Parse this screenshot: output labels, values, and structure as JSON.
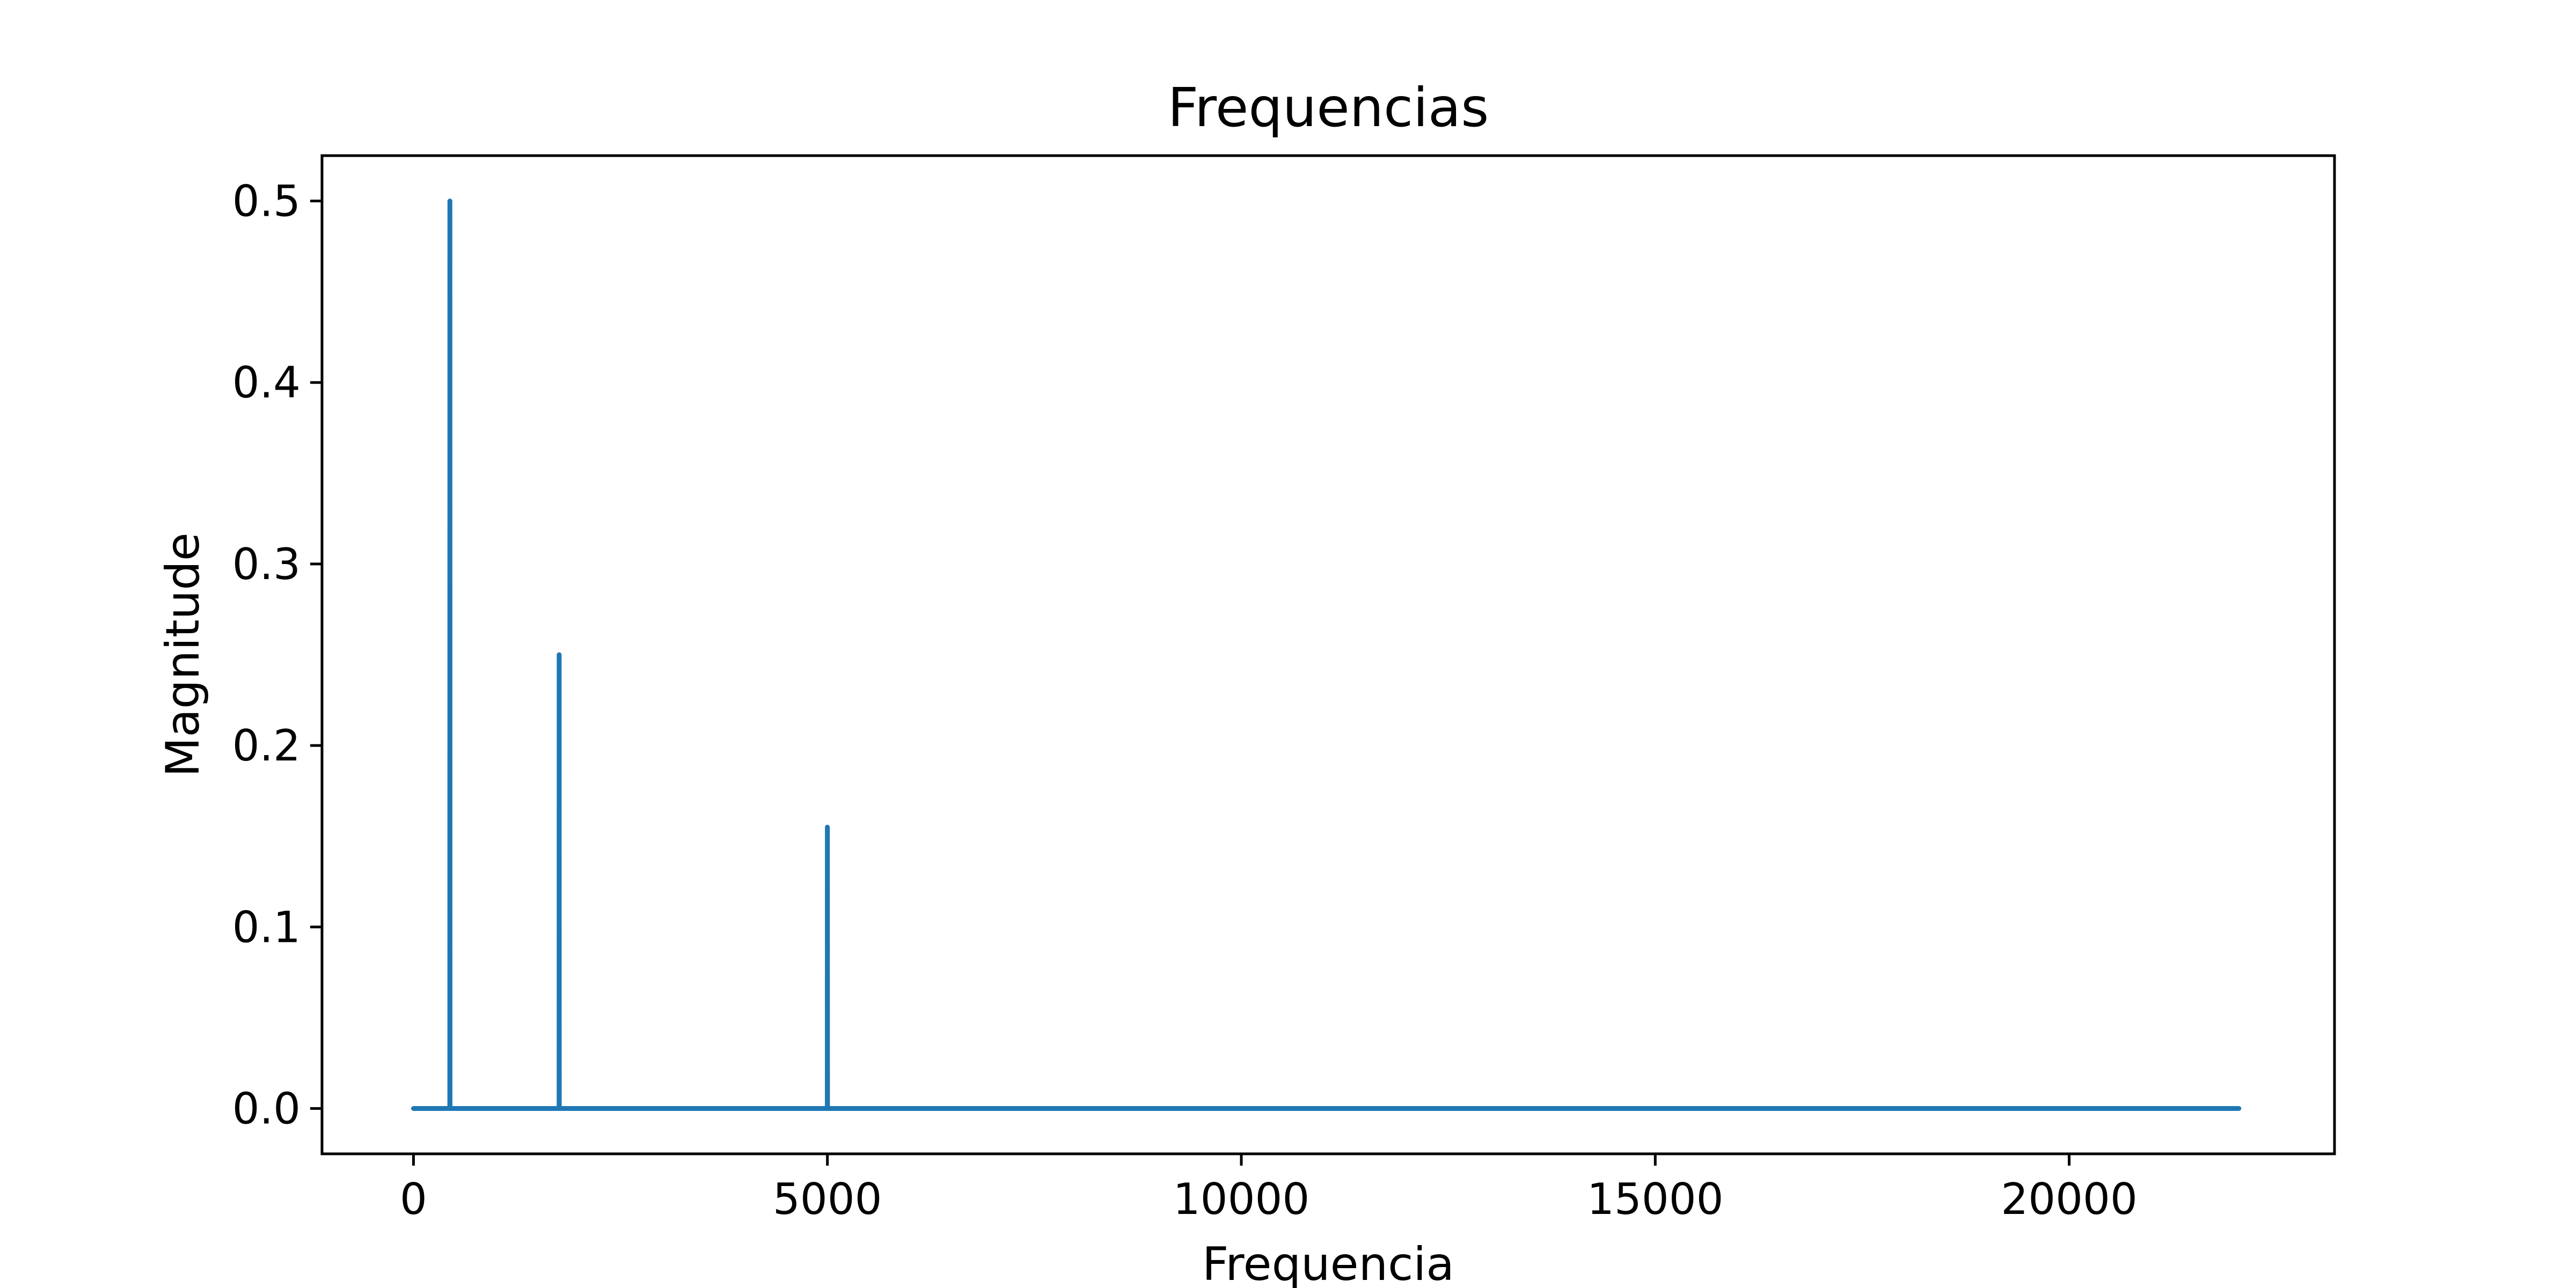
{
  "chart_data": {
    "type": "line",
    "title": "Frequencias",
    "xlabel": "Frequencia",
    "ylabel": "Magnitude",
    "xlim": [
      -1105,
      23205
    ],
    "ylim": [
      -0.025,
      0.525
    ],
    "xticks": [
      0,
      5000,
      10000,
      15000,
      20000
    ],
    "yticks": [
      0.0,
      0.1,
      0.2,
      0.3,
      0.4,
      0.5
    ],
    "xtick_labels": [
      "0",
      "5000",
      "10000",
      "15000",
      "20000"
    ],
    "ytick_labels": [
      "0.0",
      "0.1",
      "0.2",
      "0.3",
      "0.4",
      "0.5"
    ],
    "grid": false,
    "series": [
      {
        "color": "#1f77b4",
        "x": [
          0,
          439,
          440,
          441,
          1759,
          1760,
          1761,
          4999,
          5000,
          5001,
          22050
        ],
        "y": [
          0,
          0,
          0.5,
          0,
          0,
          0.25,
          0,
          0,
          0.155,
          0,
          0
        ]
      }
    ]
  }
}
